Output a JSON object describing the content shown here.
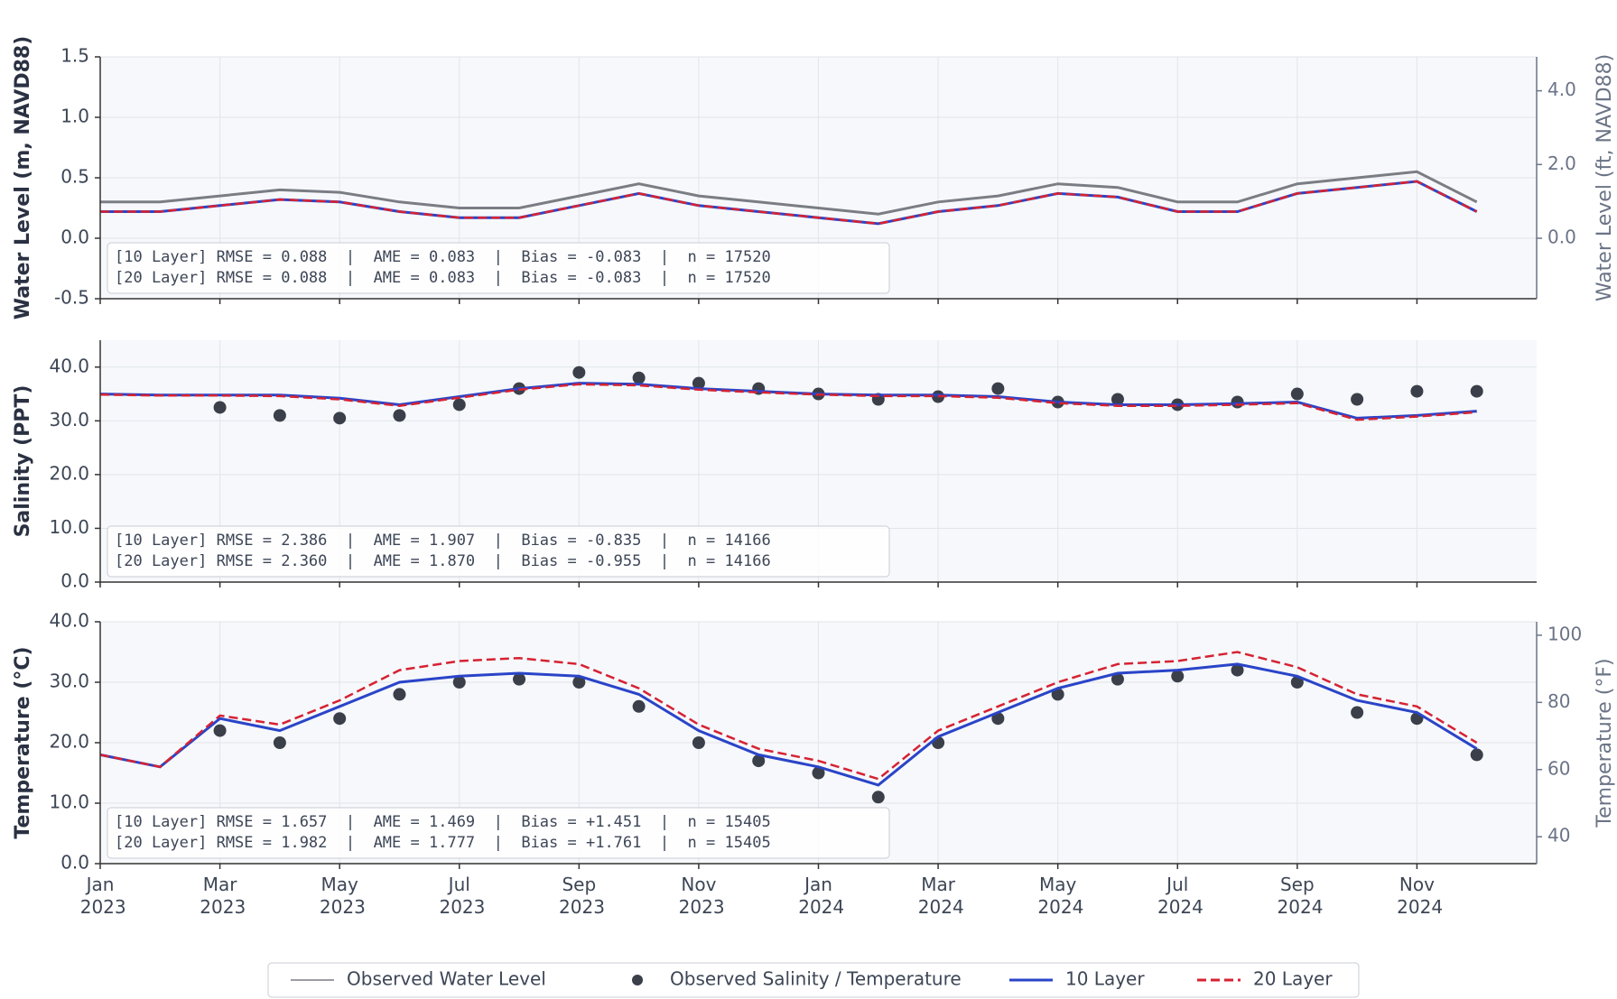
{
  "chart_data": [
    {
      "type": "line",
      "ylabel": "Water Level (m, NAVD88)",
      "y2label": "Water Level (ft, NAVD88)",
      "x": [
        "2023-01",
        "2023-02",
        "2023-03",
        "2023-04",
        "2023-05",
        "2023-06",
        "2023-07",
        "2023-08",
        "2023-09",
        "2023-10",
        "2023-11",
        "2023-12",
        "2024-01",
        "2024-02",
        "2024-03",
        "2024-04",
        "2024-05",
        "2024-06",
        "2024-07",
        "2024-08",
        "2024-09",
        "2024-10",
        "2024-11",
        "2024-12"
      ],
      "xlim": [
        "2023-01",
        "2025-01"
      ],
      "ylim": [
        -0.5,
        1.5
      ],
      "yticks": [
        -0.5,
        {
          "value": 0,
          "label": "0.0"
        },
        0.5,
        {
          "value": 1,
          "label": "1.0"
        },
        1.5
      ],
      "y2lim": [
        -1.64,
        4.92
      ],
      "y2ticks": [
        {
          "value": 0,
          "label": "0.0"
        },
        {
          "value": 2,
          "label": "2.0"
        },
        {
          "value": 4,
          "label": "4.0"
        }
      ],
      "series": [
        {
          "name": "Observed Water Level",
          "type": "line",
          "color": "#7a7d84",
          "values": [
            0.3,
            0.3,
            0.35,
            0.4,
            0.38,
            0.3,
            0.25,
            0.25,
            0.35,
            0.45,
            0.35,
            0.3,
            0.25,
            0.2,
            0.3,
            0.35,
            0.45,
            0.42,
            0.3,
            0.3,
            0.45,
            0.5,
            0.55,
            0.3
          ]
        },
        {
          "name": "10 Layer",
          "type": "line",
          "color": "#2a44c8",
          "values": [
            0.22,
            0.22,
            0.27,
            0.32,
            0.3,
            0.22,
            0.17,
            0.17,
            0.27,
            0.37,
            0.27,
            0.22,
            0.17,
            0.12,
            0.22,
            0.27,
            0.37,
            0.34,
            0.22,
            0.22,
            0.37,
            0.42,
            0.47,
            0.22
          ]
        },
        {
          "name": "20 Layer",
          "type": "line",
          "color": "#d62233",
          "dashed": true,
          "values": [
            0.22,
            0.22,
            0.27,
            0.32,
            0.3,
            0.22,
            0.17,
            0.17,
            0.27,
            0.37,
            0.27,
            0.22,
            0.17,
            0.12,
            0.22,
            0.27,
            0.37,
            0.34,
            0.22,
            0.22,
            0.37,
            0.42,
            0.47,
            0.22
          ]
        }
      ],
      "stats": [
        "[10 Layer] RMSE = 0.088  |  AME = 0.083  |  Bias = -0.083  |  n = 17520",
        "[20 Layer] RMSE = 0.088  |  AME = 0.083  |  Bias = -0.083  |  n = 17520"
      ]
    },
    {
      "type": "line",
      "ylabel": "Salinity (PPT)",
      "x": [
        "2023-01",
        "2023-02",
        "2023-03",
        "2023-04",
        "2023-05",
        "2023-06",
        "2023-07",
        "2023-08",
        "2023-09",
        "2023-10",
        "2023-11",
        "2023-12",
        "2024-01",
        "2024-02",
        "2024-03",
        "2024-04",
        "2024-05",
        "2024-06",
        "2024-07",
        "2024-08",
        "2024-09",
        "2024-10",
        "2024-11",
        "2024-12"
      ],
      "xlim": [
        "2023-01",
        "2025-01"
      ],
      "ylim": [
        0,
        45
      ],
      "yticks": [
        {
          "value": 0,
          "label": "0.0"
        },
        {
          "value": 10,
          "label": "10.0"
        },
        {
          "value": 20,
          "label": "20.0"
        },
        {
          "value": 30,
          "label": "30.0"
        },
        {
          "value": 40,
          "label": "40.0"
        }
      ],
      "series": [
        {
          "name": "Observed Salinity / Temperature",
          "type": "scatter",
          "color": "#3a3f4a",
          "values": [
            null,
            null,
            32.5,
            31,
            30.5,
            31,
            33,
            36,
            39,
            38,
            37,
            36,
            35,
            34,
            34.5,
            36,
            33.5,
            34,
            33,
            33.5,
            35,
            34,
            35.5,
            35.5
          ]
        },
        {
          "name": "10 Layer",
          "type": "line",
          "color": "#2a44c8",
          "values": [
            35.0,
            34.8,
            34.8,
            34.8,
            34.2,
            33.0,
            34.5,
            36.0,
            37.0,
            36.8,
            36.0,
            35.5,
            35.0,
            34.8,
            34.8,
            34.5,
            33.5,
            33.0,
            33.0,
            33.2,
            33.5,
            30.5,
            31.0,
            31.8
          ]
        },
        {
          "name": "20 Layer",
          "type": "line",
          "color": "#d62233",
          "dashed": true,
          "values": [
            34.9,
            34.7,
            34.7,
            34.6,
            34.0,
            32.8,
            34.3,
            35.8,
            36.8,
            36.6,
            35.8,
            35.3,
            34.9,
            34.6,
            34.6,
            34.3,
            33.3,
            32.8,
            32.8,
            33.0,
            33.3,
            30.2,
            30.8,
            31.6
          ]
        }
      ],
      "stats": [
        "[10 Layer] RMSE = 2.386  |  AME = 1.907  |  Bias = -0.835  |  n = 14166",
        "[20 Layer] RMSE = 2.360  |  AME = 1.870  |  Bias = -0.955  |  n = 14166"
      ]
    },
    {
      "type": "line",
      "ylabel": "Temperature (°C)",
      "y2label": "Temperature (°F)",
      "x": [
        "2023-01",
        "2023-02",
        "2023-03",
        "2023-04",
        "2023-05",
        "2023-06",
        "2023-07",
        "2023-08",
        "2023-09",
        "2023-10",
        "2023-11",
        "2023-12",
        "2024-01",
        "2024-02",
        "2024-03",
        "2024-04",
        "2024-05",
        "2024-06",
        "2024-07",
        "2024-08",
        "2024-09",
        "2024-10",
        "2024-11",
        "2024-12"
      ],
      "xlim": [
        "2023-01",
        "2025-01"
      ],
      "xticks": [
        {
          "value": "2023-01",
          "label": "Jan 2023"
        },
        {
          "value": "2023-03",
          "label": "Mar 2023"
        },
        {
          "value": "2023-05",
          "label": "May 2023"
        },
        {
          "value": "2023-07",
          "label": "Jul 2023"
        },
        {
          "value": "2023-09",
          "label": "Sep 2023"
        },
        {
          "value": "2023-11",
          "label": "Nov 2023"
        },
        {
          "value": "2024-01",
          "label": "Jan 2024"
        },
        {
          "value": "2024-03",
          "label": "Mar 2024"
        },
        {
          "value": "2024-05",
          "label": "May 2024"
        },
        {
          "value": "2024-07",
          "label": "Jul 2024"
        },
        {
          "value": "2024-09",
          "label": "Sep 2024"
        },
        {
          "value": "2024-11",
          "label": "Nov 2024"
        }
      ],
      "ylim": [
        0,
        40
      ],
      "yticks": [
        {
          "value": 0,
          "label": "0.0"
        },
        {
          "value": 10,
          "label": "10.0"
        },
        {
          "value": 20,
          "label": "20.0"
        },
        {
          "value": 30,
          "label": "30.0"
        },
        {
          "value": 40,
          "label": "40.0"
        }
      ],
      "y2lim": [
        32,
        104
      ],
      "y2ticks": [
        40,
        60,
        80,
        100
      ],
      "series": [
        {
          "name": "Observed Salinity / Temperature",
          "type": "scatter",
          "color": "#3a3f4a",
          "values": [
            null,
            null,
            22,
            20,
            24,
            28,
            30,
            30.5,
            30,
            26,
            20,
            17,
            15,
            11,
            20,
            24,
            28,
            30.5,
            31,
            32,
            30,
            25,
            24,
            18
          ]
        },
        {
          "name": "10 Layer",
          "type": "line",
          "color": "#2a44c8",
          "values": [
            18,
            16,
            24,
            22,
            26,
            30,
            31,
            31.5,
            31,
            28,
            22,
            18,
            16,
            13,
            21,
            25,
            29,
            31.5,
            32,
            33,
            31,
            27,
            25,
            19
          ]
        },
        {
          "name": "20 Layer",
          "type": "line",
          "color": "#d62233",
          "dashed": true,
          "values": [
            18,
            16,
            24.5,
            23,
            27,
            32,
            33.5,
            34,
            33,
            29,
            23,
            19,
            17,
            14,
            22,
            26,
            30,
            33,
            33.5,
            35,
            32.5,
            28,
            26,
            20
          ]
        }
      ],
      "stats": [
        "[10 Layer] RMSE = 1.657  |  AME = 1.469  |  Bias = +1.451  |  n = 15405",
        "[20 Layer] RMSE = 1.982  |  AME = 1.777  |  Bias = +1.761  |  n = 15405"
      ]
    }
  ]
}
